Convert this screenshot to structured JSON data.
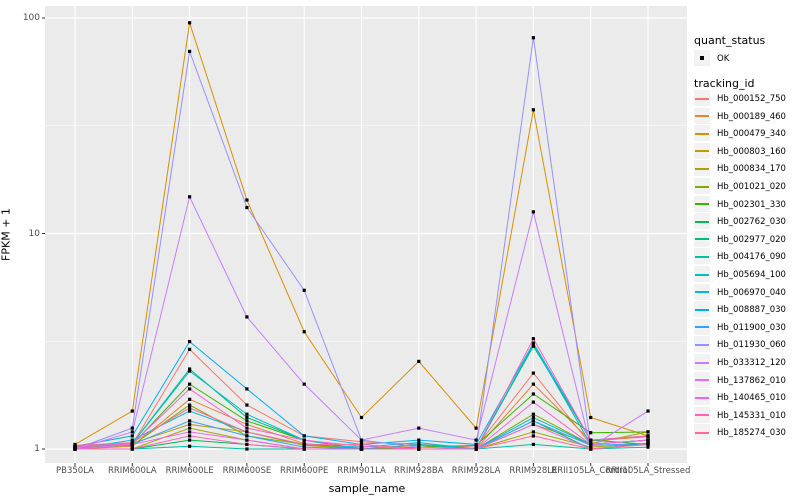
{
  "chart_data": {
    "type": "line",
    "title": "",
    "xlabel": "sample_name",
    "ylabel": "FPKM + 1",
    "y_scale": "log10",
    "ylim": [
      0.86,
      117
    ],
    "y_major_ticks": [
      1,
      10,
      100
    ],
    "y_minor_ticks": [
      3.162,
      31.62
    ],
    "grid": true,
    "panel_bg": "#EBEBEB",
    "grid_color": "#FFFFFF",
    "marker": {
      "shape": "square",
      "color": "#000000",
      "size": 3.2,
      "meaning": "quant_status OK"
    },
    "legend_position": "right",
    "categories": [
      "PB350LA",
      "RRIM600LA",
      "RRIM600LE",
      "RRIM600SE",
      "RRIM600PE",
      "RRIM901LA",
      "RRIM928BA",
      "RRIM928LA",
      "RRIM928LE",
      "RRII105LA_Control",
      "RRII105LA_Stressed"
    ],
    "series": [
      {
        "name": "Hb_000152_750",
        "color": "#F8766D",
        "values": [
          1.02,
          1.05,
          2.9,
          1.6,
          1.15,
          1.08,
          1.05,
          1.02,
          2.25,
          1.05,
          1.1
        ]
      },
      {
        "name": "Hb_000189_460",
        "color": "#EA8331",
        "values": [
          1.0,
          1.03,
          1.7,
          1.3,
          1.06,
          1.0,
          1.04,
          1.0,
          2.0,
          1.09,
          1.14
        ]
      },
      {
        "name": "Hb_000479_340",
        "color": "#D89000",
        "values": [
          1.05,
          1.5,
          95,
          14.3,
          3.5,
          1.4,
          2.55,
          1.25,
          37.5,
          1.4,
          1.15
        ]
      },
      {
        "name": "Hb_000803_160",
        "color": "#C09B00",
        "values": [
          1.03,
          1.06,
          1.3,
          1.2,
          1.04,
          1.0,
          1.0,
          1.0,
          1.3,
          1.06,
          1.2
        ]
      },
      {
        "name": "Hb_000834_170",
        "color": "#A3A500",
        "values": [
          1.0,
          1.0,
          1.25,
          1.1,
          1.0,
          1.0,
          1.0,
          1.0,
          1.2,
          1.02,
          1.06
        ]
      },
      {
        "name": "Hb_001021_020",
        "color": "#7CAE00",
        "values": [
          1.01,
          1.04,
          1.6,
          1.15,
          1.05,
          1.0,
          1.0,
          1.0,
          1.45,
          1.05,
          1.1
        ]
      },
      {
        "name": "Hb_002301_330",
        "color": "#39B600",
        "values": [
          1.0,
          1.05,
          2.0,
          1.35,
          1.1,
          1.0,
          1.02,
          1.04,
          1.8,
          1.19,
          1.2
        ]
      },
      {
        "name": "Hb_002762_030",
        "color": "#00BB4E",
        "values": [
          1.0,
          1.0,
          1.1,
          1.05,
          1.0,
          1.0,
          1.0,
          1.0,
          3.0,
          1.1,
          1.05
        ]
      },
      {
        "name": "Hb_002977_020",
        "color": "#00BF7D",
        "values": [
          1.02,
          1.06,
          2.35,
          1.4,
          1.1,
          1.0,
          1.0,
          1.0,
          1.35,
          1.0,
          1.06
        ]
      },
      {
        "name": "Hb_004176_090",
        "color": "#00C1A3",
        "values": [
          1.0,
          1.0,
          1.03,
          1.0,
          1.0,
          1.0,
          1.0,
          1.0,
          1.05,
          1.0,
          1.02
        ]
      },
      {
        "name": "Hb_005694_100",
        "color": "#00BFC4",
        "values": [
          1.02,
          1.06,
          2.3,
          1.45,
          1.1,
          1.0,
          1.05,
          1.0,
          3.05,
          1.05,
          1.1
        ]
      },
      {
        "name": "Hb_006970_040",
        "color": "#00BAE0",
        "values": [
          1.0,
          1.1,
          1.5,
          1.2,
          1.05,
          1.02,
          1.07,
          1.0,
          1.4,
          1.05,
          1.1
        ]
      },
      {
        "name": "Hb_008887_030",
        "color": "#00B0F6",
        "values": [
          1.03,
          1.15,
          3.15,
          1.9,
          1.15,
          1.05,
          1.1,
          1.05,
          3.1,
          1.1,
          1.15
        ]
      },
      {
        "name": "Hb_011900_030",
        "color": "#35A2FF",
        "values": [
          1.0,
          1.05,
          1.35,
          1.15,
          1.02,
          1.0,
          1.0,
          1.0,
          1.35,
          1.04,
          1.06
        ]
      },
      {
        "name": "Hb_011930_060",
        "color": "#9590FF",
        "values": [
          1.0,
          1.25,
          70,
          13.2,
          5.45,
          1.1,
          1.02,
          1.0,
          81,
          1.05,
          1.1
        ]
      },
      {
        "name": "Hb_033312_120",
        "color": "#C77CFF",
        "values": [
          1.0,
          1.2,
          14.8,
          4.1,
          2.0,
          1.1,
          1.25,
          1.1,
          12.6,
          1.02,
          1.5
        ]
      },
      {
        "name": "Hb_137862_010",
        "color": "#E76BF3",
        "values": [
          1.0,
          1.05,
          1.2,
          1.1,
          1.0,
          1.0,
          1.0,
          1.0,
          1.3,
          1.0,
          1.05
        ]
      },
      {
        "name": "Hb_140465_010",
        "color": "#FA62DB",
        "values": [
          1.02,
          1.06,
          1.9,
          1.25,
          1.1,
          1.03,
          1.0,
          1.0,
          1.65,
          1.05,
          1.1
        ]
      },
      {
        "name": "Hb_145331_010",
        "color": "#FF62BC",
        "values": [
          1.0,
          1.0,
          1.15,
          1.05,
          1.0,
          1.0,
          1.0,
          1.0,
          3.25,
          1.1,
          1.15
        ]
      },
      {
        "name": "Hb_185274_030",
        "color": "#FF6A98",
        "values": [
          1.04,
          1.07,
          1.55,
          1.2,
          1.05,
          1.05,
          1.0,
          1.0,
          1.15,
          1.0,
          1.05
        ]
      }
    ]
  },
  "legend": {
    "quant_status_title": "quant_status",
    "ok_label": "OK",
    "tracking_id_title": "tracking_id"
  },
  "axes": {
    "y_tick_labels": [
      "100",
      "10",
      "1"
    ],
    "x_title": "sample_name",
    "y_title": "FPKM + 1"
  }
}
